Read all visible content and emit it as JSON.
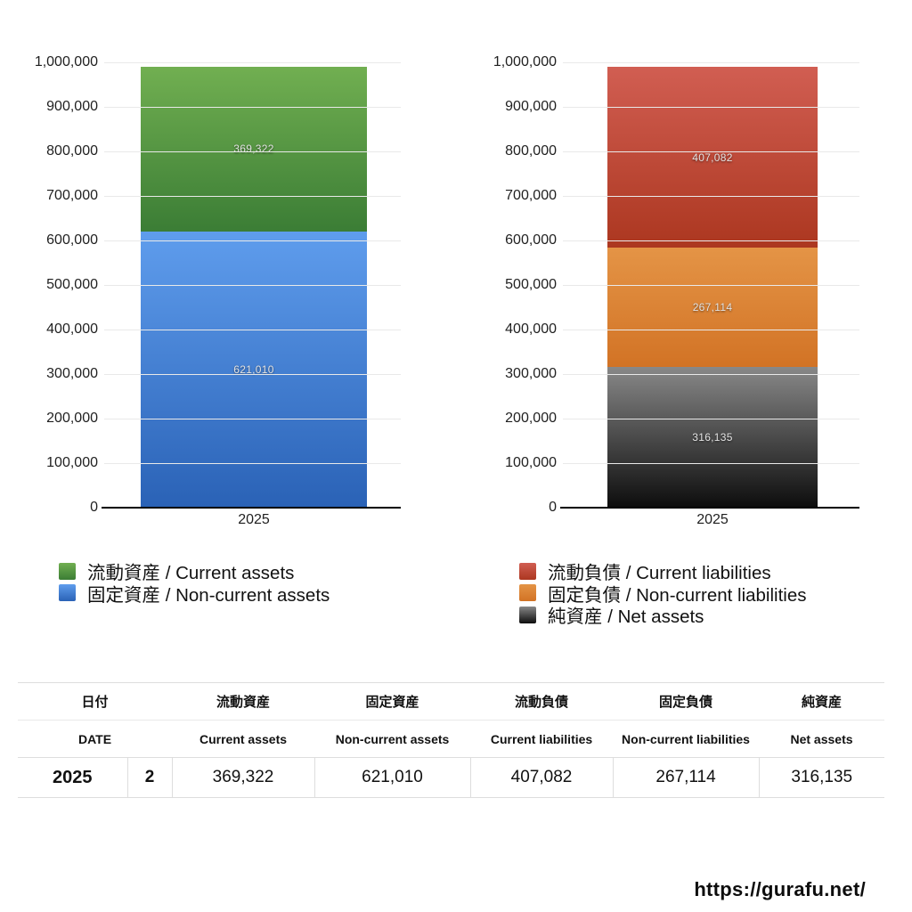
{
  "chart_data": [
    {
      "type": "bar",
      "stacked": true,
      "title": "",
      "xlabel": "",
      "ylabel": "",
      "categories": [
        "2025"
      ],
      "ylim": [
        0,
        1000000
      ],
      "y_ticks": [
        "1,000,000",
        "900,000",
        "800,000",
        "700,000",
        "600,000",
        "500,000",
        "400,000",
        "300,000",
        "200,000",
        "100,000",
        "0"
      ],
      "grid": true,
      "legend_position": "bottom-left",
      "series": [
        {
          "id": "current-assets",
          "name": "流動資産 / Current assets",
          "values": [
            369322
          ],
          "display": "369,322",
          "color_top": "#71af51",
          "color_bottom": "#3b7d35"
        },
        {
          "id": "non-current-assets",
          "name": "固定資産 / Non-current assets",
          "values": [
            621010
          ],
          "display": "621,010",
          "color_top": "#5f9ded",
          "color_bottom": "#2a62b6"
        }
      ]
    },
    {
      "type": "bar",
      "stacked": true,
      "title": "",
      "xlabel": "",
      "ylabel": "",
      "categories": [
        "2025"
      ],
      "ylim": [
        0,
        1000000
      ],
      "y_ticks": [
        "1,000,000",
        "900,000",
        "800,000",
        "700,000",
        "600,000",
        "500,000",
        "400,000",
        "300,000",
        "200,000",
        "100,000",
        "0"
      ],
      "grid": true,
      "legend_position": "bottom-left",
      "series": [
        {
          "id": "current-liabilities",
          "name": "流動負債 / Current liabilities",
          "values": [
            407082
          ],
          "display": "407,082",
          "color_top": "#d15e52",
          "color_bottom": "#ac3720"
        },
        {
          "id": "non-current-liabilities",
          "name": "固定負債 / Non-current liabilities",
          "values": [
            267114
          ],
          "display": "267,114",
          "color_top": "#e49446",
          "color_bottom": "#d27325"
        },
        {
          "id": "net-assets",
          "name": "純資産 / Net assets",
          "values": [
            316135
          ],
          "display": "316,135",
          "color_top": "#888888",
          "color_bottom": "#0d0d0d"
        }
      ]
    }
  ],
  "table": {
    "header_jp": [
      "日付",
      "流動資産",
      "固定資産",
      "流動負債",
      "固定負債",
      "純資産"
    ],
    "header_en": [
      "DATE",
      "Current assets",
      "Non-current assets",
      "Current liabilities",
      "Non-current liabilities",
      "Net assets"
    ],
    "row": {
      "year": "2025",
      "month": "2",
      "values": [
        "369,322",
        "621,010",
        "407,082",
        "267,114",
        "316,135"
      ]
    }
  },
  "footer": {
    "url": "https://gurafu.net/"
  }
}
